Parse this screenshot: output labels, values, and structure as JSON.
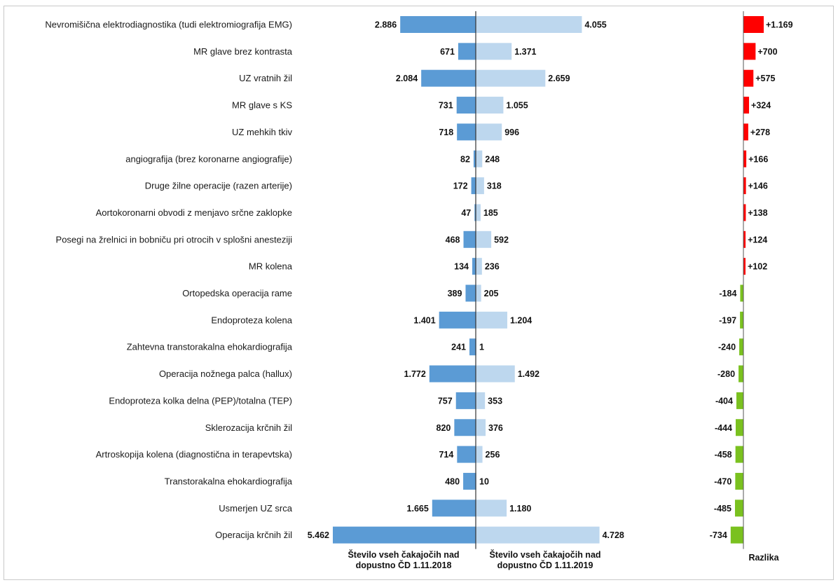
{
  "chart_data": {
    "type": "bar",
    "orientation": "horizontal",
    "categories": [
      "Nevromišična elektrodiagnostika (tudi elektromiografija EMG)",
      "MR glave brez kontrasta",
      "UZ vratnih žil",
      "MR glave s KS",
      "UZ mehkih tkiv",
      "angiografija (brez koronarne angiografije)",
      "Druge žilne operacije (razen arterije)",
      "Aortokoronarni obvodi z menjavo srčne zaklopke",
      "Posegi na žrelnici in bobniču pri otrocih v splošni anesteziji",
      "MR kolena",
      "Ortopedska operacija rame",
      "Endoproteza kolena",
      "Zahtevna transtorakalna ehokardiografija",
      "Operacija nožnega palca (hallux)",
      "Endoproteza kolka delna (PEP)/totalna (TEP)",
      "Sklerozacija krčnih žil",
      "Artroskopija kolena (diagnostična in terapevtska)",
      "Transtorakalna ehokardiografija",
      "Usmerjen UZ srca",
      "Operacija krčnih žil"
    ],
    "series": [
      {
        "name": "Število vseh čakajočih nad dopustno ČD 1.11.2018",
        "values": [
          2886,
          671,
          2084,
          731,
          718,
          82,
          172,
          47,
          468,
          134,
          389,
          1401,
          241,
          1772,
          757,
          820,
          714,
          480,
          1665,
          5462
        ],
        "labels": [
          "2.886",
          "671",
          "2.084",
          "731",
          "718",
          "82",
          "172",
          "47",
          "468",
          "134",
          "389",
          "1.401",
          "241",
          "1.772",
          "757",
          "820",
          "714",
          "480",
          "1.665",
          "5.462"
        ],
        "color": "#5b9bd5"
      },
      {
        "name": "Število vseh čakajočih nad dopustno ČD 1.11.2019",
        "values": [
          4055,
          1371,
          2659,
          1055,
          996,
          248,
          318,
          185,
          592,
          236,
          205,
          1204,
          1,
          1492,
          353,
          376,
          256,
          10,
          1180,
          4728
        ],
        "labels": [
          "4.055",
          "1.371",
          "2.659",
          "1.055",
          "996",
          "248",
          "318",
          "185",
          "592",
          "236",
          "205",
          "1.204",
          "1",
          "1.492",
          "353",
          "376",
          "256",
          "10",
          "1.180",
          "4.728"
        ],
        "color": "#bdd7ee"
      },
      {
        "name": "Razlika",
        "values": [
          1169,
          700,
          575,
          324,
          278,
          166,
          146,
          138,
          124,
          102,
          -184,
          -197,
          -240,
          -280,
          -404,
          -444,
          -458,
          -470,
          -485,
          -734
        ],
        "labels": [
          "+1.169",
          "+700",
          "+575",
          "+324",
          "+278",
          "+166",
          "+146",
          "+138",
          "+124",
          "+102",
          "-184",
          "-197",
          "-240",
          "-280",
          "-404",
          "-444",
          "-458",
          "-470",
          "-485",
          "-734"
        ],
        "positive_color": "#ff0000",
        "negative_color": "#7ac11f"
      }
    ],
    "axis_titles": {
      "left_line1": "Število vseh čakajočih nad",
      "left_line2": "dopustno ČD  1.11.2018",
      "right_line1": "Število vseh čakajočih nad",
      "right_line2": "dopustno ČD 1.11.2019",
      "diff": "Razlika"
    },
    "grid": false
  }
}
